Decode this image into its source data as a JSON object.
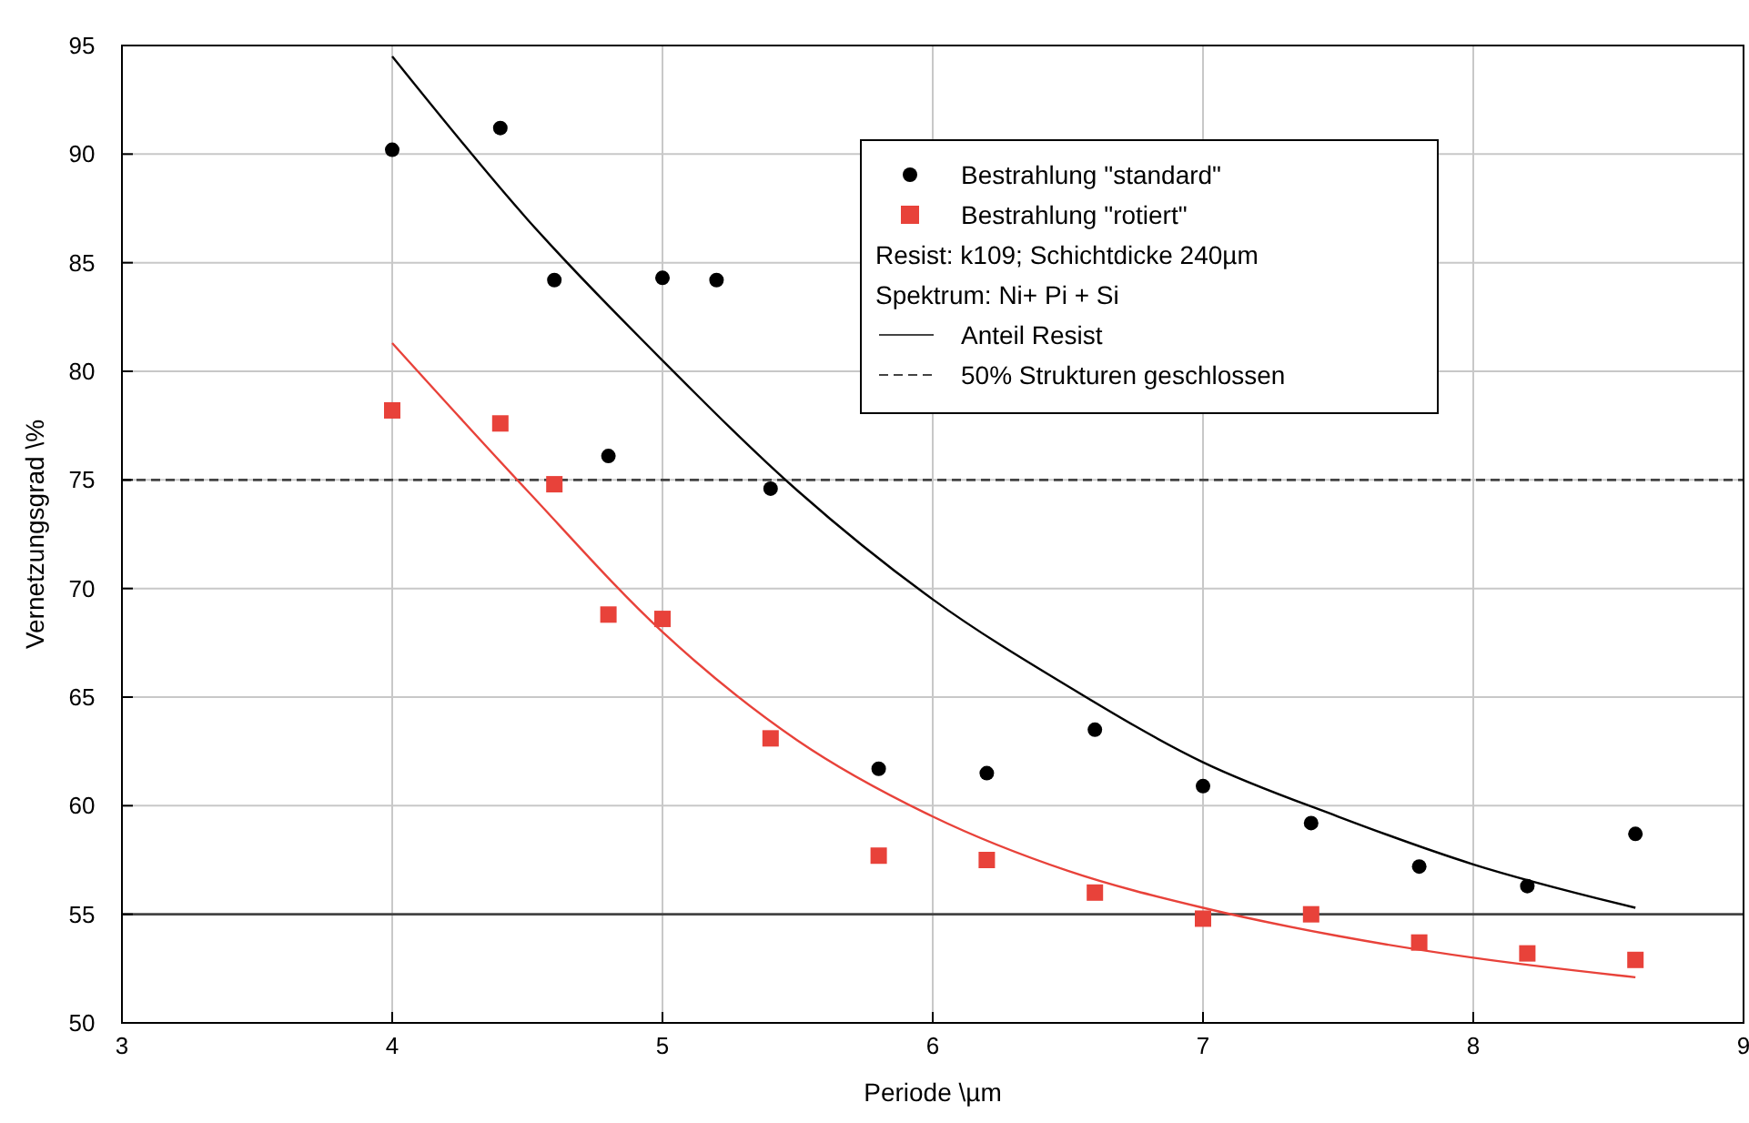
{
  "chart_data": {
    "type": "scatter",
    "xlabel": "Periode \\µm",
    "ylabel": "Vernetzungsgrad \\%",
    "xlim": [
      3,
      9
    ],
    "xticks": [
      3,
      4,
      5,
      6,
      7,
      8,
      9
    ],
    "ylim": [
      50,
      95
    ],
    "yticks": [
      50,
      55,
      60,
      65,
      70,
      75,
      80,
      85,
      90,
      95
    ],
    "grid": true,
    "legend": "top right",
    "series": [
      {
        "name": "Bestrahlung \"standard\"",
        "marker": "circle",
        "color": "#000000",
        "x": [
          4,
          4.4,
          4.6,
          4.8,
          5,
          5.2,
          5.4,
          5.8,
          6.2,
          6.6,
          7,
          7.4,
          7.8,
          8.2,
          8.6
        ],
        "values": [
          90.2,
          91.2,
          84.2,
          76.1,
          84.3,
          84.2,
          74.6,
          61.7,
          61.5,
          63.5,
          60.9,
          59.2,
          57.2,
          56.3,
          58.7
        ]
      },
      {
        "name": "Bestrahlung \"rotiert\"",
        "marker": "square",
        "color": "#e8423a",
        "x": [
          4,
          4.4,
          4.6,
          4.8,
          5,
          5.4,
          5.8,
          6.2,
          6.6,
          7,
          7.4,
          7.8,
          8.2,
          8.6
        ],
        "values": [
          78.2,
          77.6,
          74.8,
          68.8,
          68.6,
          63.1,
          57.7,
          57.5,
          56.0,
          54.8,
          55.0,
          53.7,
          53.2,
          52.9
        ]
      },
      {
        "type": "line",
        "color": "#000000",
        "x": [
          4,
          4.5,
          5,
          5.5,
          6,
          6.5,
          7,
          7.5,
          8,
          8.6
        ],
        "values": [
          94.5,
          87,
          80.5,
          74.5,
          69.5,
          65.5,
          62,
          59.5,
          57.3,
          55.3
        ]
      },
      {
        "type": "line",
        "color": "#e8423a",
        "x": [
          4,
          4.5,
          5,
          5.5,
          6,
          6.5,
          7,
          7.5,
          8,
          8.6
        ],
        "values": [
          81.3,
          74.5,
          68,
          63,
          59.5,
          57,
          55.3,
          54,
          53,
          52.1
        ]
      }
    ],
    "ref_lines": [
      {
        "axis": "y",
        "value": 55,
        "label": "Anteil Resist",
        "color": "#444444",
        "line_style": "solid"
      },
      {
        "axis": "y",
        "value": 75,
        "label": "50% Strukturen geschlossen",
        "color": "#444444",
        "line_style": "dashed"
      }
    ],
    "annotations": [
      "Resist: k109; Schichtdicke 240µm",
      "Spektrum: Ni+ Pi + Si"
    ]
  }
}
